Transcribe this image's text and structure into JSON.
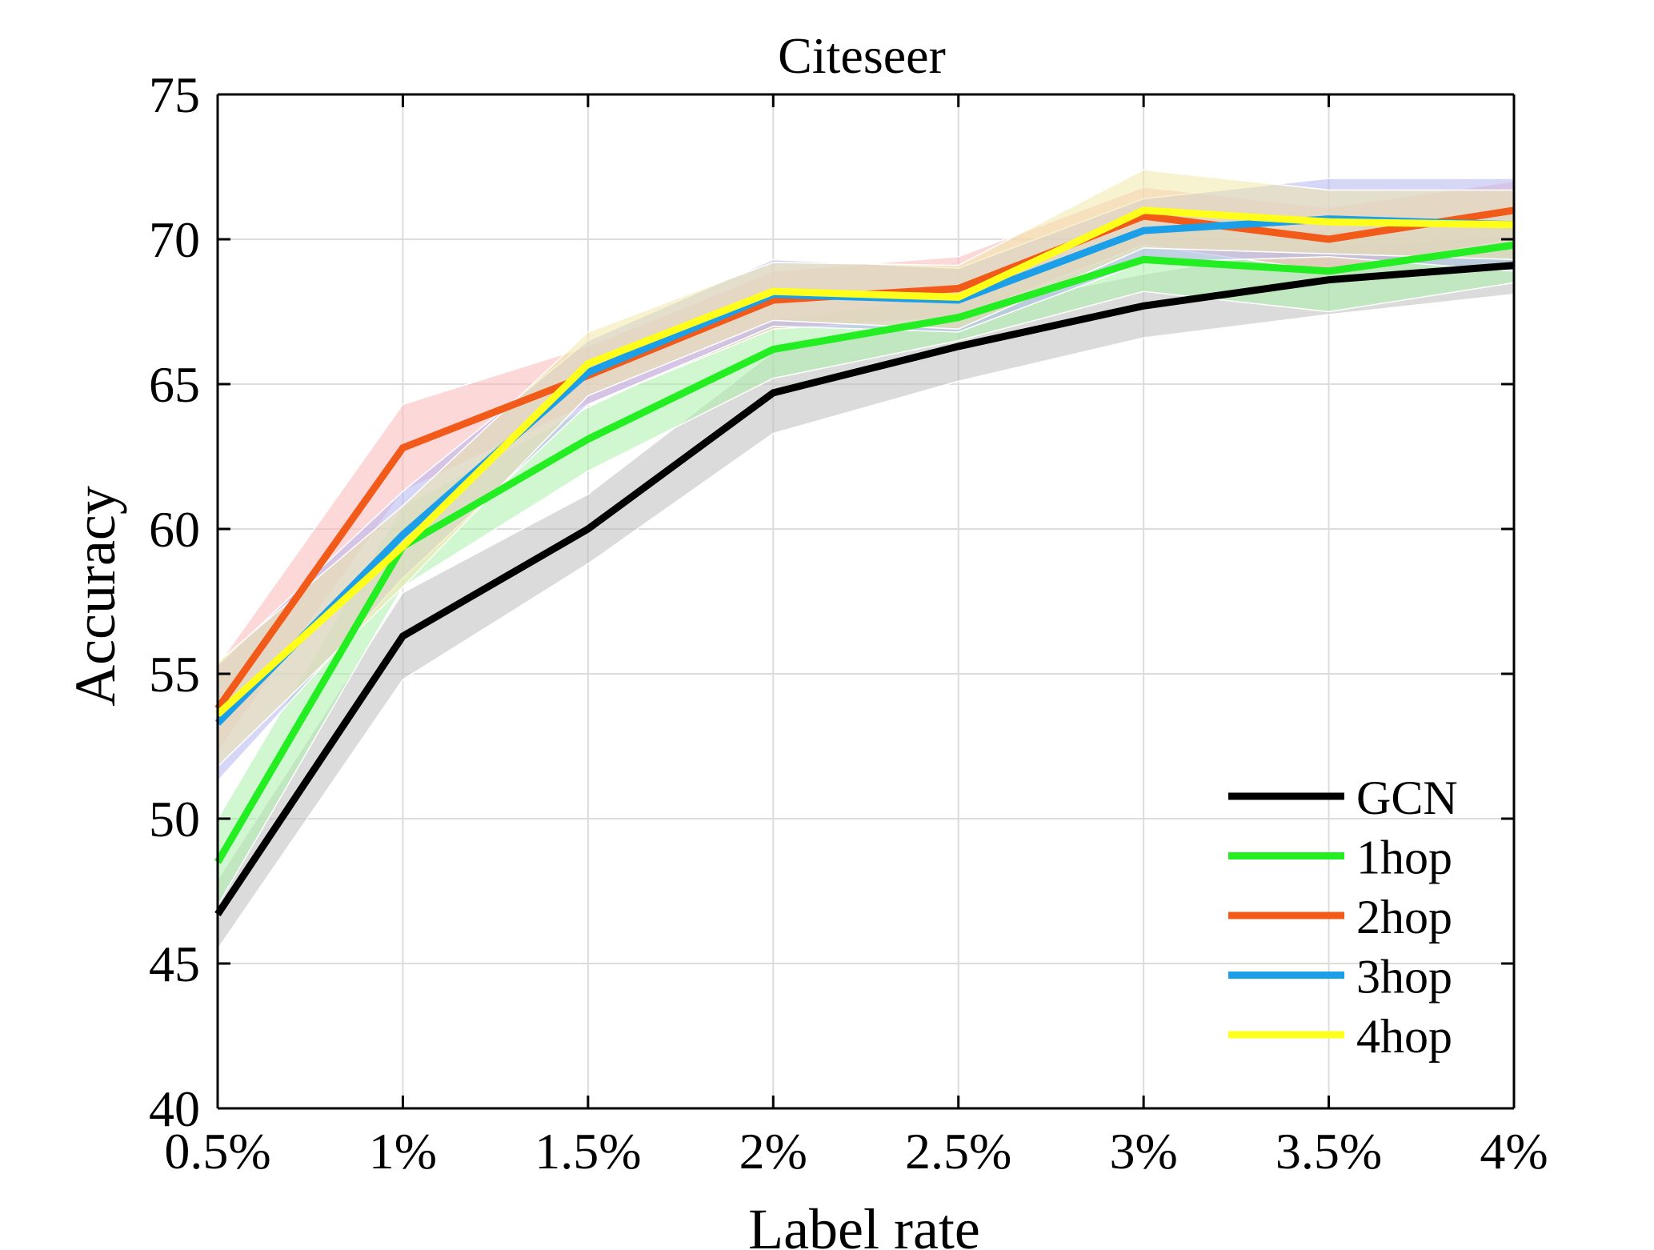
{
  "chart_data": {
    "type": "line",
    "title": "Citeseer",
    "xlabel": "Label rate",
    "ylabel": "Accuracy",
    "categories": [
      "0.5%",
      "1%",
      "1.5%",
      "2%",
      "2.5%",
      "3%",
      "3.5%",
      "4%"
    ],
    "x": [
      0.5,
      1,
      1.5,
      2,
      2.5,
      3,
      3.5,
      4
    ],
    "xlim": [
      0.5,
      4
    ],
    "ylim": [
      40,
      75
    ],
    "yticks": [
      40,
      45,
      50,
      55,
      60,
      65,
      70,
      75
    ],
    "grid": true,
    "legend_position": "bottom-right",
    "series": [
      {
        "name": "GCN",
        "color": "#000000",
        "band_color": "#bdbdbd",
        "values": [
          46.7,
          56.3,
          60.0,
          64.7,
          66.3,
          67.7,
          68.6,
          69.1
        ],
        "lower": [
          45.5,
          54.8,
          58.8,
          63.3,
          65.1,
          66.6,
          67.4,
          68.1
        ],
        "upper": [
          47.9,
          57.8,
          61.2,
          66.1,
          67.5,
          68.8,
          69.8,
          70.1
        ]
      },
      {
        "name": "1hop",
        "color": "#22ee22",
        "band_color": "#aaf0aa",
        "values": [
          48.5,
          59.4,
          63.1,
          66.2,
          67.3,
          69.3,
          68.9,
          69.8
        ],
        "lower": [
          47.0,
          58.0,
          62.0,
          65.2,
          66.5,
          68.2,
          67.5,
          68.5
        ],
        "upper": [
          50.0,
          60.8,
          64.2,
          67.2,
          68.1,
          70.4,
          70.3,
          71.1
        ]
      },
      {
        "name": "2hop",
        "color": "#f25a1a",
        "band_color": "#f9b8b8",
        "values": [
          53.8,
          62.8,
          65.3,
          67.9,
          68.3,
          70.8,
          70.0,
          71.0
        ],
        "lower": [
          52.3,
          61.3,
          64.3,
          66.9,
          67.3,
          69.8,
          68.9,
          70.0
        ],
        "upper": [
          55.3,
          64.3,
          66.3,
          68.9,
          69.4,
          71.8,
          71.1,
          72.0
        ]
      },
      {
        "name": "3hop",
        "color": "#1a9fe8",
        "band_color": "#b4b4f0",
        "values": [
          53.3,
          59.8,
          65.4,
          68.1,
          67.9,
          70.3,
          70.7,
          70.5
        ],
        "lower": [
          51.3,
          58.3,
          64.3,
          67.0,
          66.8,
          69.2,
          69.4,
          68.9
        ],
        "upper": [
          55.3,
          61.3,
          66.5,
          69.3,
          69.0,
          71.4,
          72.1,
          72.1
        ]
      },
      {
        "name": "4hop",
        "color": "#ffff1a",
        "band_color": "#f0e8aa",
        "values": [
          53.6,
          59.4,
          65.7,
          68.2,
          68.0,
          71.0,
          70.6,
          70.5
        ],
        "lower": [
          51.8,
          58.0,
          64.6,
          67.2,
          66.9,
          69.7,
          69.5,
          69.3
        ],
        "upper": [
          55.4,
          60.8,
          66.8,
          69.2,
          69.1,
          72.4,
          71.7,
          71.7
        ]
      }
    ]
  }
}
